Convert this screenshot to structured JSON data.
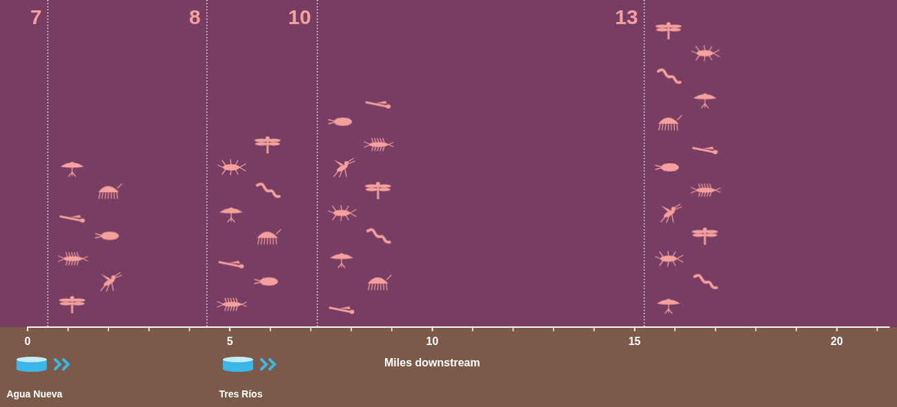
{
  "chart_data": {
    "type": "scatter",
    "xlabel": "Miles downstream",
    "xlim": [
      0,
      21.3
    ],
    "xticks": [
      0,
      5,
      10,
      15,
      20
    ],
    "tick_labels": "x",
    "grid": false,
    "color": "#f4a09c",
    "data_labels": true,
    "x": [
      0.5,
      4.43,
      7.16,
      15.24
    ],
    "values": [
      7,
      8,
      10,
      13
    ],
    "annotations": [
      {
        "x": 0.1,
        "label": "Agua Nueva"
      },
      {
        "x": 5.2,
        "label": "Tres Ríos"
      }
    ]
  }
}
